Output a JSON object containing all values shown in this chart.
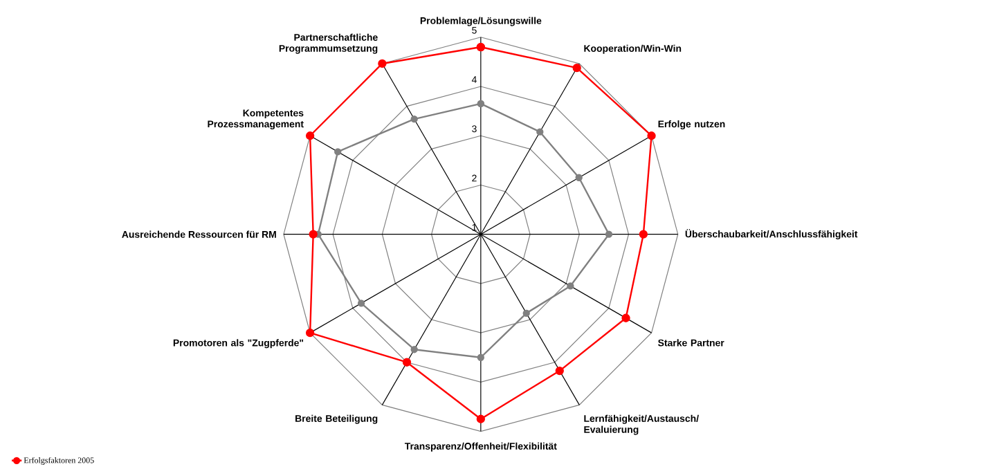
{
  "chart_data": {
    "type": "radar",
    "categories": [
      "Problemlage/Lösungswille",
      "Kooperation/Win-Win",
      "Erfolge nutzen",
      "Überschaubarkeit/Anschlussfähigkeit",
      "Starke Partner",
      "Lernfähigkeit/Austausch/Evaluierung",
      "Transparenz/Offenheit/Flexibilität",
      "Breite Beteiligung",
      "Promotoren als \"Zugpferde\"",
      "Ausreichende Ressourcen für RM",
      "Kompetentes Prozessmanagement",
      "Partnerschaftliche Programmumsetzung"
    ],
    "ylim": [
      1,
      5
    ],
    "yticks": [
      1,
      2,
      3,
      4,
      5
    ],
    "grid": true,
    "legend": "bottom left",
    "marker": "circle",
    "line_style": "solid",
    "series": [
      {
        "name": "Erfolgsfaktoren 2005",
        "color": "#ff0000",
        "values": [
          4.8,
          4.9,
          5.0,
          4.3,
          4.4,
          4.2,
          4.75,
          4.0,
          5.0,
          4.4,
          5.0,
          5.0
        ]
      },
      {
        "color": "#808080",
        "values": [
          3.65,
          3.4,
          3.3,
          3.6,
          3.1,
          2.85,
          3.5,
          3.7,
          3.8,
          4.3,
          4.35,
          3.7
        ]
      }
    ]
  }
}
